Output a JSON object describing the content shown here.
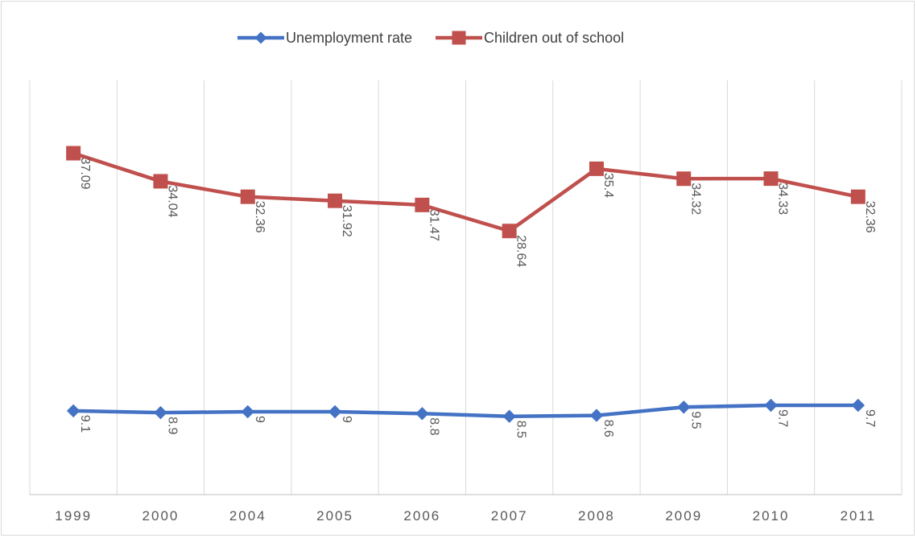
{
  "chart_data": {
    "type": "line",
    "title": "",
    "xlabel": "",
    "ylabel": "",
    "categories": [
      "1999",
      "2000",
      "2004",
      "2005",
      "2006",
      "2007",
      "2008",
      "2009",
      "2010",
      "2011"
    ],
    "series": [
      {
        "name": "Unemployment rate",
        "color": "#4472c4",
        "marker": "diamond",
        "values": [
          9.1,
          8.9,
          9,
          9,
          8.8,
          8.5,
          8.6,
          9.5,
          9.7,
          9.7
        ],
        "labels": [
          "9.1",
          "8.9",
          "9",
          "9",
          "8.8",
          "8.5",
          "8.6",
          "9.5",
          "9.7",
          "9.7"
        ]
      },
      {
        "name": "Children out of school",
        "color": "#c0504d",
        "marker": "square",
        "values": [
          37.09,
          34.04,
          32.36,
          31.92,
          31.47,
          28.64,
          35.4,
          34.32,
          34.33,
          32.36
        ],
        "labels": [
          "37.09",
          "34.04",
          "32.36",
          "31.92",
          "31.47",
          "28.64",
          "35.4",
          "34.32",
          "34.33",
          "32.36"
        ]
      }
    ],
    "ylim": [
      0,
      45
    ],
    "gridlines": "vertical",
    "y_axis_labels": false,
    "legend_position": "top",
    "data_labels_rotation": "vertical"
  }
}
